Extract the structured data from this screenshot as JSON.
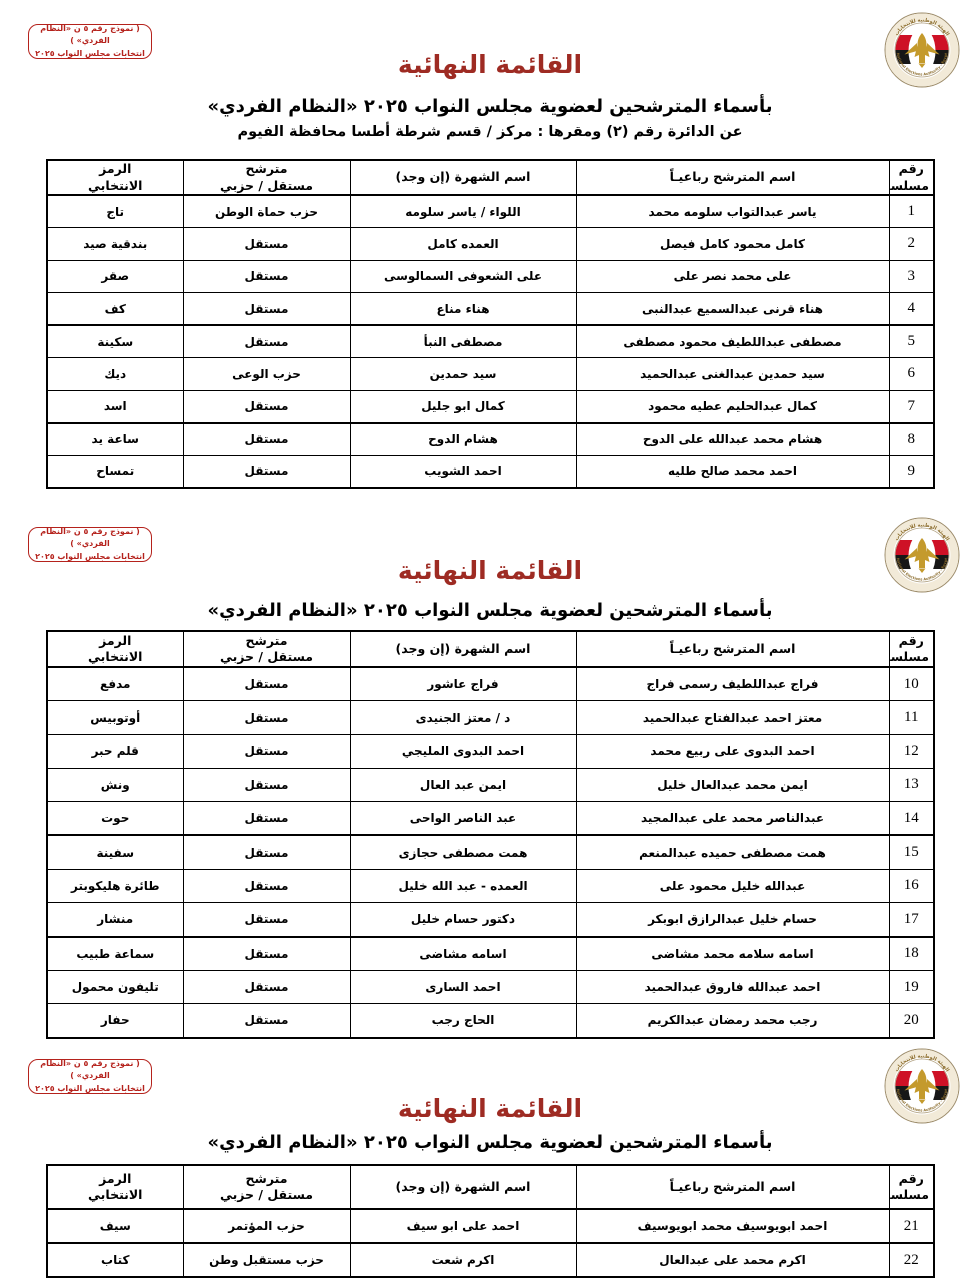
{
  "colors": {
    "title_red": "#9e2b23",
    "stamp_red": "#b5221c",
    "flag_red": "#ce1126",
    "eagle_gold": "#c49a2c",
    "ring_gold": "#8c6d2d"
  },
  "stamp": {
    "line1": "( نموذج رقم ٥ ن «النظام الفردي» )",
    "line2": "انتخابات مجلس النواب ٢٠٢٥"
  },
  "logo": {
    "name": "national-elections-authority-egypt-emblem",
    "ring_text_top": "الهيئة الوطنية للانتخابات",
    "ring_text_bottom": "National Elections Authority - Egypt"
  },
  "heading": {
    "title": "القائمة النهائية",
    "subtitle": "بأسماء المترشحين لعضوية مجلس النواب ٢٠٢٥ «النظام الفردي»",
    "district_line": "عن الدائرة رقم (٢)    ومقرها : مركز / قسم شرطة  أطسا    محافظة  الفيوم"
  },
  "table_headers": {
    "serial": "رقم\nمسلسل",
    "name": "اسم المترشح رباعيـاً",
    "fame": "اسم الشهرة (إن وجد)",
    "affiliation": "مترشح\nمستقل / حزبي",
    "symbol": "الرمز\nالانتخابي"
  },
  "sections": [
    {
      "has_district_line": true,
      "rows": [
        {
          "serial": "1",
          "name": "ياسر عبدالتواب سلومه محمد",
          "fame": "اللواء / ياسر سلومه",
          "affiliation": "حزب حماة الوطن",
          "symbol": "تاج"
        },
        {
          "serial": "2",
          "name": "كامل محمود كامل فيصل",
          "fame": "العمده كامل",
          "affiliation": "مستقل",
          "symbol": "بندقية صيد"
        },
        {
          "serial": "3",
          "name": "على محمد نصر على",
          "fame": "على الشعوفى السمالوسى",
          "affiliation": "مستقل",
          "symbol": "صقر"
        },
        {
          "serial": "4",
          "name": "هناء قرنى عبدالسميع عبدالنبى",
          "fame": "هناء مناع",
          "affiliation": "مستقل",
          "symbol": "كف",
          "thick_divider": true
        },
        {
          "serial": "5",
          "name": "مصطفى عبداللطيف محمود مصطفى",
          "fame": "مصطفى النبأ",
          "affiliation": "مستقل",
          "symbol": "سكينة"
        },
        {
          "serial": "6",
          "name": "سيد حمدين عبدالغنى عبدالحميد",
          "fame": "سيد حمدين",
          "affiliation": "حزب الوعى",
          "symbol": "ديك"
        },
        {
          "serial": "7",
          "name": "كمال عبدالحليم عطيه محمود",
          "fame": "كمال ابو جليل",
          "affiliation": "مستقل",
          "symbol": "اسد",
          "thick_divider": true
        },
        {
          "serial": "8",
          "name": "هشام محمد عبدالله على الدوح",
          "fame": "هشام الدوح",
          "affiliation": "مستقل",
          "symbol": "ساعة يد"
        },
        {
          "serial": "9",
          "name": "احمد محمد صالح طليه",
          "fame": "احمد الشويب",
          "affiliation": "مستقل",
          "symbol": "تمساح"
        }
      ]
    },
    {
      "has_district_line": false,
      "rows": [
        {
          "serial": "10",
          "name": "فراج عبداللطيف رسمى فراج",
          "fame": "فراج عاشور",
          "affiliation": "مستقل",
          "symbol": "مدفع"
        },
        {
          "serial": "11",
          "name": "معتز احمد عبدالفتاح عبدالحميد",
          "fame": "د / معتز الجنيدى",
          "affiliation": "مستقل",
          "symbol": "أوتوبيس"
        },
        {
          "serial": "12",
          "name": "احمد البدوى على ربيع محمد",
          "fame": "احمد البدوى المليجي",
          "affiliation": "مستقل",
          "symbol": "قلم حبر"
        },
        {
          "serial": "13",
          "name": "ايمن محمد عبدالعال خليل",
          "fame": "ايمن عبد العال",
          "affiliation": "مستقل",
          "symbol": "ونش"
        },
        {
          "serial": "14",
          "name": "عبدالناصر محمد على عبدالمجيد",
          "fame": "عبد الناصر الواحى",
          "affiliation": "مستقل",
          "symbol": "حوت",
          "thick_divider": true
        },
        {
          "serial": "15",
          "name": "همت مصطفى حميده عبدالمنعم",
          "fame": "همت مصطفى حجازى",
          "affiliation": "مستقل",
          "symbol": "سفينة"
        },
        {
          "serial": "16",
          "name": "عبدالله خليل محمود على",
          "fame": "العمده - عبد الله خليل",
          "affiliation": "مستقل",
          "symbol": "طائرة هليكوبتر"
        },
        {
          "serial": "17",
          "name": "حسام خليل عبدالرازق ابوبكر",
          "fame": "دكتور حسام خليل",
          "affiliation": "مستقل",
          "symbol": "منشار",
          "thick_divider": true
        },
        {
          "serial": "18",
          "name": "اسامه سلامه محمد مشاضى",
          "fame": "اسامه مشاضى",
          "affiliation": "مستقل",
          "symbol": "سماعة طبيب"
        },
        {
          "serial": "19",
          "name": "احمد عبدالله فاروق عبدالحميد",
          "fame": "احمد السارى",
          "affiliation": "مستقل",
          "symbol": "تليفون محمول"
        },
        {
          "serial": "20",
          "name": "رجب محمد رمضان عبدالكريم",
          "fame": "الحاج رجب",
          "affiliation": "مستقل",
          "symbol": "حفار"
        }
      ]
    },
    {
      "has_district_line": false,
      "rows": [
        {
          "serial": "21",
          "name": "احمد ابويوسيف محمد ابويوسيف",
          "fame": "احمد على ابو سيف",
          "affiliation": "حزب المؤتمر",
          "symbol": "سيف",
          "thick_divider": true
        },
        {
          "serial": "22",
          "name": "اكرم محمد على عبدالعال",
          "fame": "اكرم شعت",
          "affiliation": "حزب مستقبل وطن",
          "symbol": "كتاب"
        }
      ]
    }
  ]
}
